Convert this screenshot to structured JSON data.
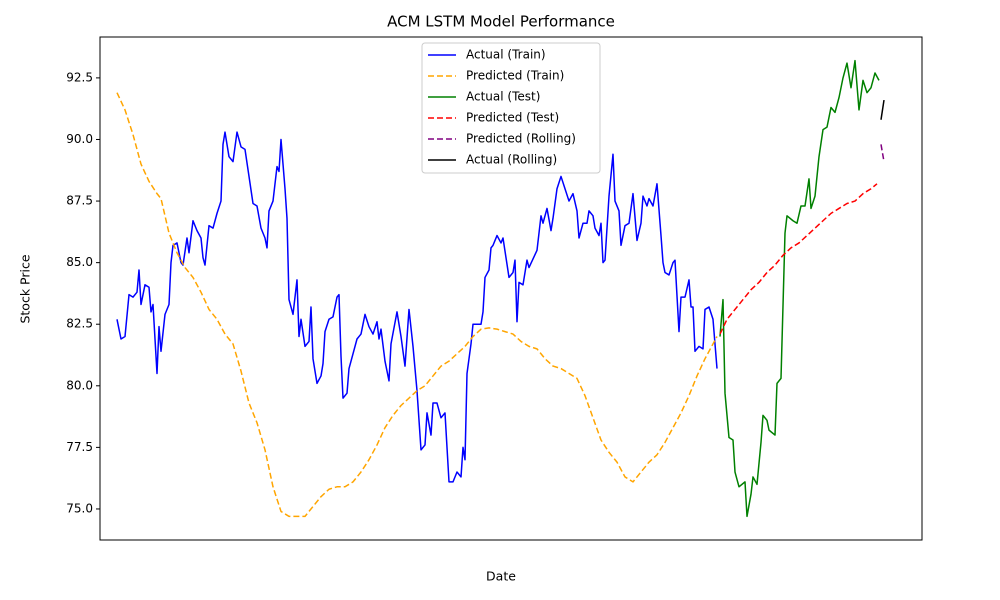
{
  "chart_data": {
    "type": "line",
    "title": "ACM LSTM Model Performance",
    "x_label": "Date",
    "y_label": "Stock Price",
    "xlim": [
      -17,
      805
    ],
    "ylim": [
      73.74,
      94.16
    ],
    "yticks": [
      {
        "value": 75,
        "label": "75.0"
      },
      77.5,
      {
        "value": 80,
        "label": "80.0"
      },
      82.5,
      {
        "value": 85,
        "label": "85.0"
      },
      87.5,
      {
        "value": 90,
        "label": "90.0"
      },
      92.5
    ],
    "legend": "upper center",
    "series": [
      {
        "name": "Actual (Train)",
        "color": "#0000ff",
        "linestyle": "solid",
        "x": [
          0,
          4,
          8,
          12,
          16,
          20,
          22,
          24,
          28,
          32,
          34,
          36,
          40,
          42,
          44,
          48,
          52,
          54,
          56,
          60,
          64,
          66,
          70,
          72,
          76,
          80,
          84,
          86,
          88,
          92,
          96,
          100,
          104,
          106,
          108,
          112,
          116,
          120,
          124,
          128,
          132,
          136,
          140,
          144,
          148,
          150,
          152,
          156,
          160,
          162,
          164,
          168,
          170,
          172,
          176,
          180,
          182,
          184,
          188,
          192,
          194,
          196,
          200,
          204,
          206,
          208,
          212,
          216,
          220,
          222,
          224,
          226,
          230,
          232,
          236,
          240,
          244,
          248,
          252,
          256,
          260,
          262,
          264,
          268,
          272,
          274,
          280,
          284,
          288,
          292,
          296,
          300,
          304,
          308,
          310,
          314,
          316,
          320,
          324,
          328,
          332,
          336,
          340,
          344,
          346,
          348,
          350,
          354,
          356,
          360,
          364,
          366,
          368,
          372,
          374,
          376,
          380,
          384,
          386,
          392,
          396,
          398,
          400,
          402,
          406,
          410,
          412,
          420,
          424,
          426,
          430,
          434,
          436,
          440,
          444,
          448,
          452,
          456,
          460,
          462,
          466,
          470,
          472,
          476,
          478,
          482,
          484,
          486,
          488,
          492,
          496,
          498,
          502,
          504,
          508,
          512,
          516,
          520,
          524,
          526,
          530,
          532,
          536,
          540,
          544,
          546,
          548,
          552,
          556,
          558,
          562,
          564,
          568,
          572,
          574,
          576,
          578,
          582,
          586,
          588,
          592,
          596,
          600
        ],
        "values": [
          82.7,
          81.9,
          82.0,
          83.7,
          83.6,
          83.8,
          84.7,
          83.3,
          84.1,
          84.0,
          83.0,
          83.3,
          80.5,
          82.4,
          81.4,
          82.9,
          83.3,
          85.0,
          85.7,
          85.8,
          85.0,
          84.9,
          86.0,
          85.4,
          86.7,
          86.3,
          86.0,
          85.2,
          84.9,
          86.5,
          86.4,
          87.0,
          87.5,
          89.8,
          90.3,
          89.3,
          89.1,
          90.3,
          89.7,
          89.6,
          88.5,
          87.4,
          87.3,
          86.4,
          86.0,
          85.6,
          87.1,
          87.5,
          88.9,
          88.7,
          90.0,
          88.0,
          86.8,
          83.5,
          82.9,
          84.3,
          82.0,
          82.7,
          81.6,
          81.8,
          83.2,
          81.1,
          80.1,
          80.4,
          80.9,
          82.2,
          82.7,
          82.8,
          83.6,
          83.7,
          81.2,
          79.5,
          79.7,
          80.7,
          81.3,
          81.9,
          82.1,
          82.9,
          82.4,
          82.1,
          82.6,
          81.9,
          82.3,
          81.0,
          80.2,
          81.7,
          83.0,
          82.0,
          80.8,
          83.1,
          81.6,
          79.8,
          77.4,
          77.6,
          78.9,
          78.0,
          79.3,
          79.3,
          78.7,
          78.9,
          76.1,
          76.1,
          76.5,
          76.3,
          77.5,
          77.0,
          80.5,
          81.7,
          82.5,
          82.5,
          82.5,
          83.0,
          84.4,
          84.7,
          85.6,
          85.7,
          86.1,
          85.8,
          86.0,
          84.4,
          84.6,
          85.1,
          82.6,
          84.2,
          84.1,
          85.1,
          84.8,
          85.5,
          86.9,
          86.6,
          87.2,
          86.3,
          86.8,
          88.0,
          88.5,
          88.0,
          87.5,
          87.8,
          87.1,
          86.0,
          86.6,
          86.6,
          87.1,
          86.9,
          86.4,
          86.1,
          86.6,
          85.0,
          85.1,
          87.7,
          89.4,
          87.5,
          87.1,
          85.7,
          86.5,
          86.6,
          87.8,
          85.9,
          86.6,
          87.7,
          87.3,
          87.6,
          87.3,
          88.2,
          86.1,
          85.0,
          84.6,
          84.5,
          85.0,
          85.1,
          82.2,
          83.6,
          83.6,
          84.3,
          83.2,
          83.2,
          81.4,
          81.6,
          81.5,
          83.1,
          83.2,
          82.7,
          80.7
        ]
      },
      {
        "name": "Predicted (Train)",
        "color": "#ffa500",
        "linestyle": "dashed",
        "x": [
          0,
          8,
          16,
          24,
          32,
          40,
          44,
          48,
          52,
          60,
          68,
          76,
          84,
          92,
          100,
          108,
          116,
          124,
          132,
          140,
          148,
          156,
          164,
          172,
          180,
          188,
          196,
          204,
          212,
          220,
          228,
          236,
          244,
          252,
          260,
          268,
          276,
          284,
          292,
          300,
          308,
          316,
          324,
          332,
          340,
          348,
          356,
          364,
          372,
          380,
          388,
          396,
          404,
          412,
          420,
          428,
          436,
          444,
          452,
          460,
          468,
          476,
          484,
          492,
          500,
          508,
          516,
          524,
          532,
          540,
          548,
          556,
          564,
          572,
          580,
          588,
          596,
          600
        ],
        "values": [
          91.9,
          91.2,
          90.2,
          89.0,
          88.3,
          87.8,
          87.6,
          86.9,
          86.2,
          85.4,
          84.8,
          84.4,
          83.8,
          83.1,
          82.7,
          82.1,
          81.7,
          80.6,
          79.3,
          78.5,
          77.4,
          75.9,
          74.9,
          74.7,
          74.7,
          74.7,
          75.1,
          75.5,
          75.8,
          75.9,
          75.9,
          76.1,
          76.5,
          77.0,
          77.6,
          78.3,
          78.8,
          79.2,
          79.5,
          79.8,
          80.0,
          80.4,
          80.8,
          81.0,
          81.3,
          81.6,
          82.0,
          82.3,
          82.35,
          82.3,
          82.2,
          82.1,
          81.8,
          81.6,
          81.5,
          81.1,
          80.8,
          80.7,
          80.5,
          80.3,
          79.6,
          78.7,
          77.8,
          77.3,
          76.9,
          76.3,
          76.1,
          76.5,
          76.9,
          77.2,
          77.7,
          78.3,
          78.9,
          79.6,
          80.4,
          81.1,
          81.7,
          82.0
        ]
      },
      {
        "name": "Actual (Test)",
        "color": "#008000",
        "linestyle": "solid",
        "x": [
          603,
          606,
          608,
          612,
          616,
          618,
          622,
          628,
          630,
          634,
          636,
          640,
          644,
          646,
          650,
          652,
          658,
          660,
          664,
          668,
          670,
          676,
          680,
          684,
          688,
          692,
          694,
          698,
          702,
          706,
          710,
          714,
          718,
          722,
          726,
          730,
          734,
          738,
          742,
          746,
          750,
          754,
          758,
          762
        ],
        "values": [
          82.0,
          83.5,
          79.7,
          77.9,
          77.8,
          76.5,
          75.9,
          76.1,
          74.7,
          75.6,
          76.3,
          76.0,
          77.7,
          78.8,
          78.6,
          78.2,
          78.0,
          80.1,
          80.3,
          86.2,
          86.9,
          86.7,
          86.6,
          87.3,
          87.3,
          88.4,
          87.2,
          87.7,
          89.3,
          90.4,
          90.5,
          91.3,
          91.1,
          91.7,
          92.5,
          93.1,
          92.1,
          93.2,
          91.2,
          92.4,
          91.9,
          92.1,
          92.7,
          92.4
        ]
      },
      {
        "name": "Predicted (Test)",
        "color": "#ff0000",
        "linestyle": "dashed",
        "x": [
          603,
          610,
          618,
          626,
          634,
          642,
          650,
          658,
          666,
          674,
          682,
          690,
          698,
          706,
          714,
          722,
          730,
          738,
          746,
          754,
          760
        ],
        "values": [
          82.1,
          82.7,
          83.1,
          83.5,
          83.9,
          84.2,
          84.6,
          84.9,
          85.3,
          85.6,
          85.8,
          86.1,
          86.4,
          86.7,
          87.0,
          87.2,
          87.4,
          87.5,
          87.8,
          88.0,
          88.2
        ]
      },
      {
        "name": "Predicted (Rolling)",
        "color": "#800080",
        "linestyle": "dashed",
        "x": [
          764,
          767
        ],
        "values": [
          89.8,
          89.1
        ]
      },
      {
        "name": "Actual (Rolling)",
        "color": "#000000",
        "linestyle": "solid",
        "x": [
          764,
          767
        ],
        "values": [
          90.8,
          91.6
        ]
      }
    ]
  }
}
